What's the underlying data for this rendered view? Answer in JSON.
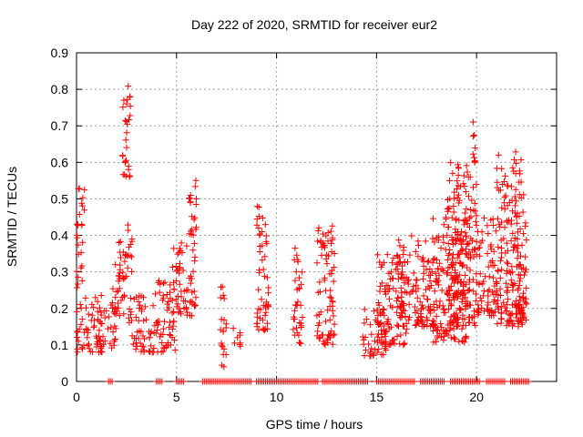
{
  "chart_data": {
    "type": "scatter",
    "title": "Day 222 of 2020, SRMTID for receiver eur2",
    "xlabel": "GPS time / hours",
    "ylabel": "SRMTID / TECUs",
    "xlim": [
      0,
      24
    ],
    "ylim": [
      0,
      0.9
    ],
    "xticks": [
      0,
      5,
      10,
      15,
      20
    ],
    "yticks": [
      0,
      0.1,
      0.2,
      0.3,
      0.4,
      0.5,
      0.6,
      0.7,
      0.8,
      0.9
    ],
    "grid": true,
    "marker": "+",
    "color": "#ff0000",
    "clusters": [
      {
        "x": [
          0.0,
          0.4
        ],
        "y": [
          0.38,
          0.53
        ]
      },
      {
        "x": [
          0.0,
          0.3
        ],
        "y": [
          0.25,
          0.38
        ]
      },
      {
        "x": [
          0.0,
          1.3
        ],
        "y": [
          0.08,
          0.24
        ]
      },
      {
        "x": [
          1.0,
          2.0
        ],
        "y": [
          0.09,
          0.22
        ]
      },
      {
        "x": [
          1.8,
          2.4
        ],
        "y": [
          0.18,
          0.32
        ]
      },
      {
        "x": [
          2.1,
          2.8
        ],
        "y": [
          0.28,
          0.44
        ]
      },
      {
        "x": [
          2.3,
          2.7
        ],
        "y": [
          0.56,
          0.83
        ]
      },
      {
        "x": [
          2.6,
          4.0
        ],
        "y": [
          0.08,
          0.24
        ]
      },
      {
        "x": [
          4.0,
          5.0
        ],
        "y": [
          0.08,
          0.28
        ]
      },
      {
        "x": [
          4.8,
          6.0
        ],
        "y": [
          0.18,
          0.38
        ]
      },
      {
        "x": [
          5.6,
          6.0
        ],
        "y": [
          0.4,
          0.58
        ]
      },
      {
        "x": [
          7.2,
          7.5
        ],
        "y": [
          0.04,
          0.3
        ]
      },
      {
        "x": [
          7.8,
          8.2
        ],
        "y": [
          0.08,
          0.15
        ]
      },
      {
        "x": [
          9.0,
          9.6
        ],
        "y": [
          0.14,
          0.48
        ]
      },
      {
        "x": [
          10.8,
          11.3
        ],
        "y": [
          0.1,
          0.37
        ]
      },
      {
        "x": [
          12.0,
          12.9
        ],
        "y": [
          0.1,
          0.43
        ]
      },
      {
        "x": [
          14.3,
          15.6
        ],
        "y": [
          0.07,
          0.2
        ]
      },
      {
        "x": [
          15.0,
          16.5
        ],
        "y": [
          0.1,
          0.35
        ]
      },
      {
        "x": [
          16.0,
          18.0
        ],
        "y": [
          0.15,
          0.4
        ]
      },
      {
        "x": [
          17.8,
          19.5
        ],
        "y": [
          0.1,
          0.45
        ]
      },
      {
        "x": [
          18.5,
          20.0
        ],
        "y": [
          0.15,
          0.6
        ]
      },
      {
        "x": [
          19.8,
          20.0
        ],
        "y": [
          0.6,
          0.74
        ]
      },
      {
        "x": [
          20.0,
          21.0
        ],
        "y": [
          0.18,
          0.45
        ]
      },
      {
        "x": [
          21.0,
          22.5
        ],
        "y": [
          0.15,
          0.63
        ]
      },
      {
        "x": [
          22.0,
          22.5
        ],
        "y": [
          0.18,
          0.32
        ]
      }
    ],
    "zero_line": {
      "y": 0,
      "x_ranges": [
        [
          1.6,
          1.8
        ],
        [
          4.0,
          4.3
        ],
        [
          5.0,
          5.4
        ],
        [
          6.3,
          8.8
        ],
        [
          9.0,
          12.1
        ],
        [
          12.3,
          14.6
        ],
        [
          15.0,
          16.9
        ],
        [
          17.2,
          18.4
        ],
        [
          18.7,
          20.2
        ],
        [
          20.5,
          21.4
        ],
        [
          21.7,
          22.6
        ]
      ]
    }
  }
}
